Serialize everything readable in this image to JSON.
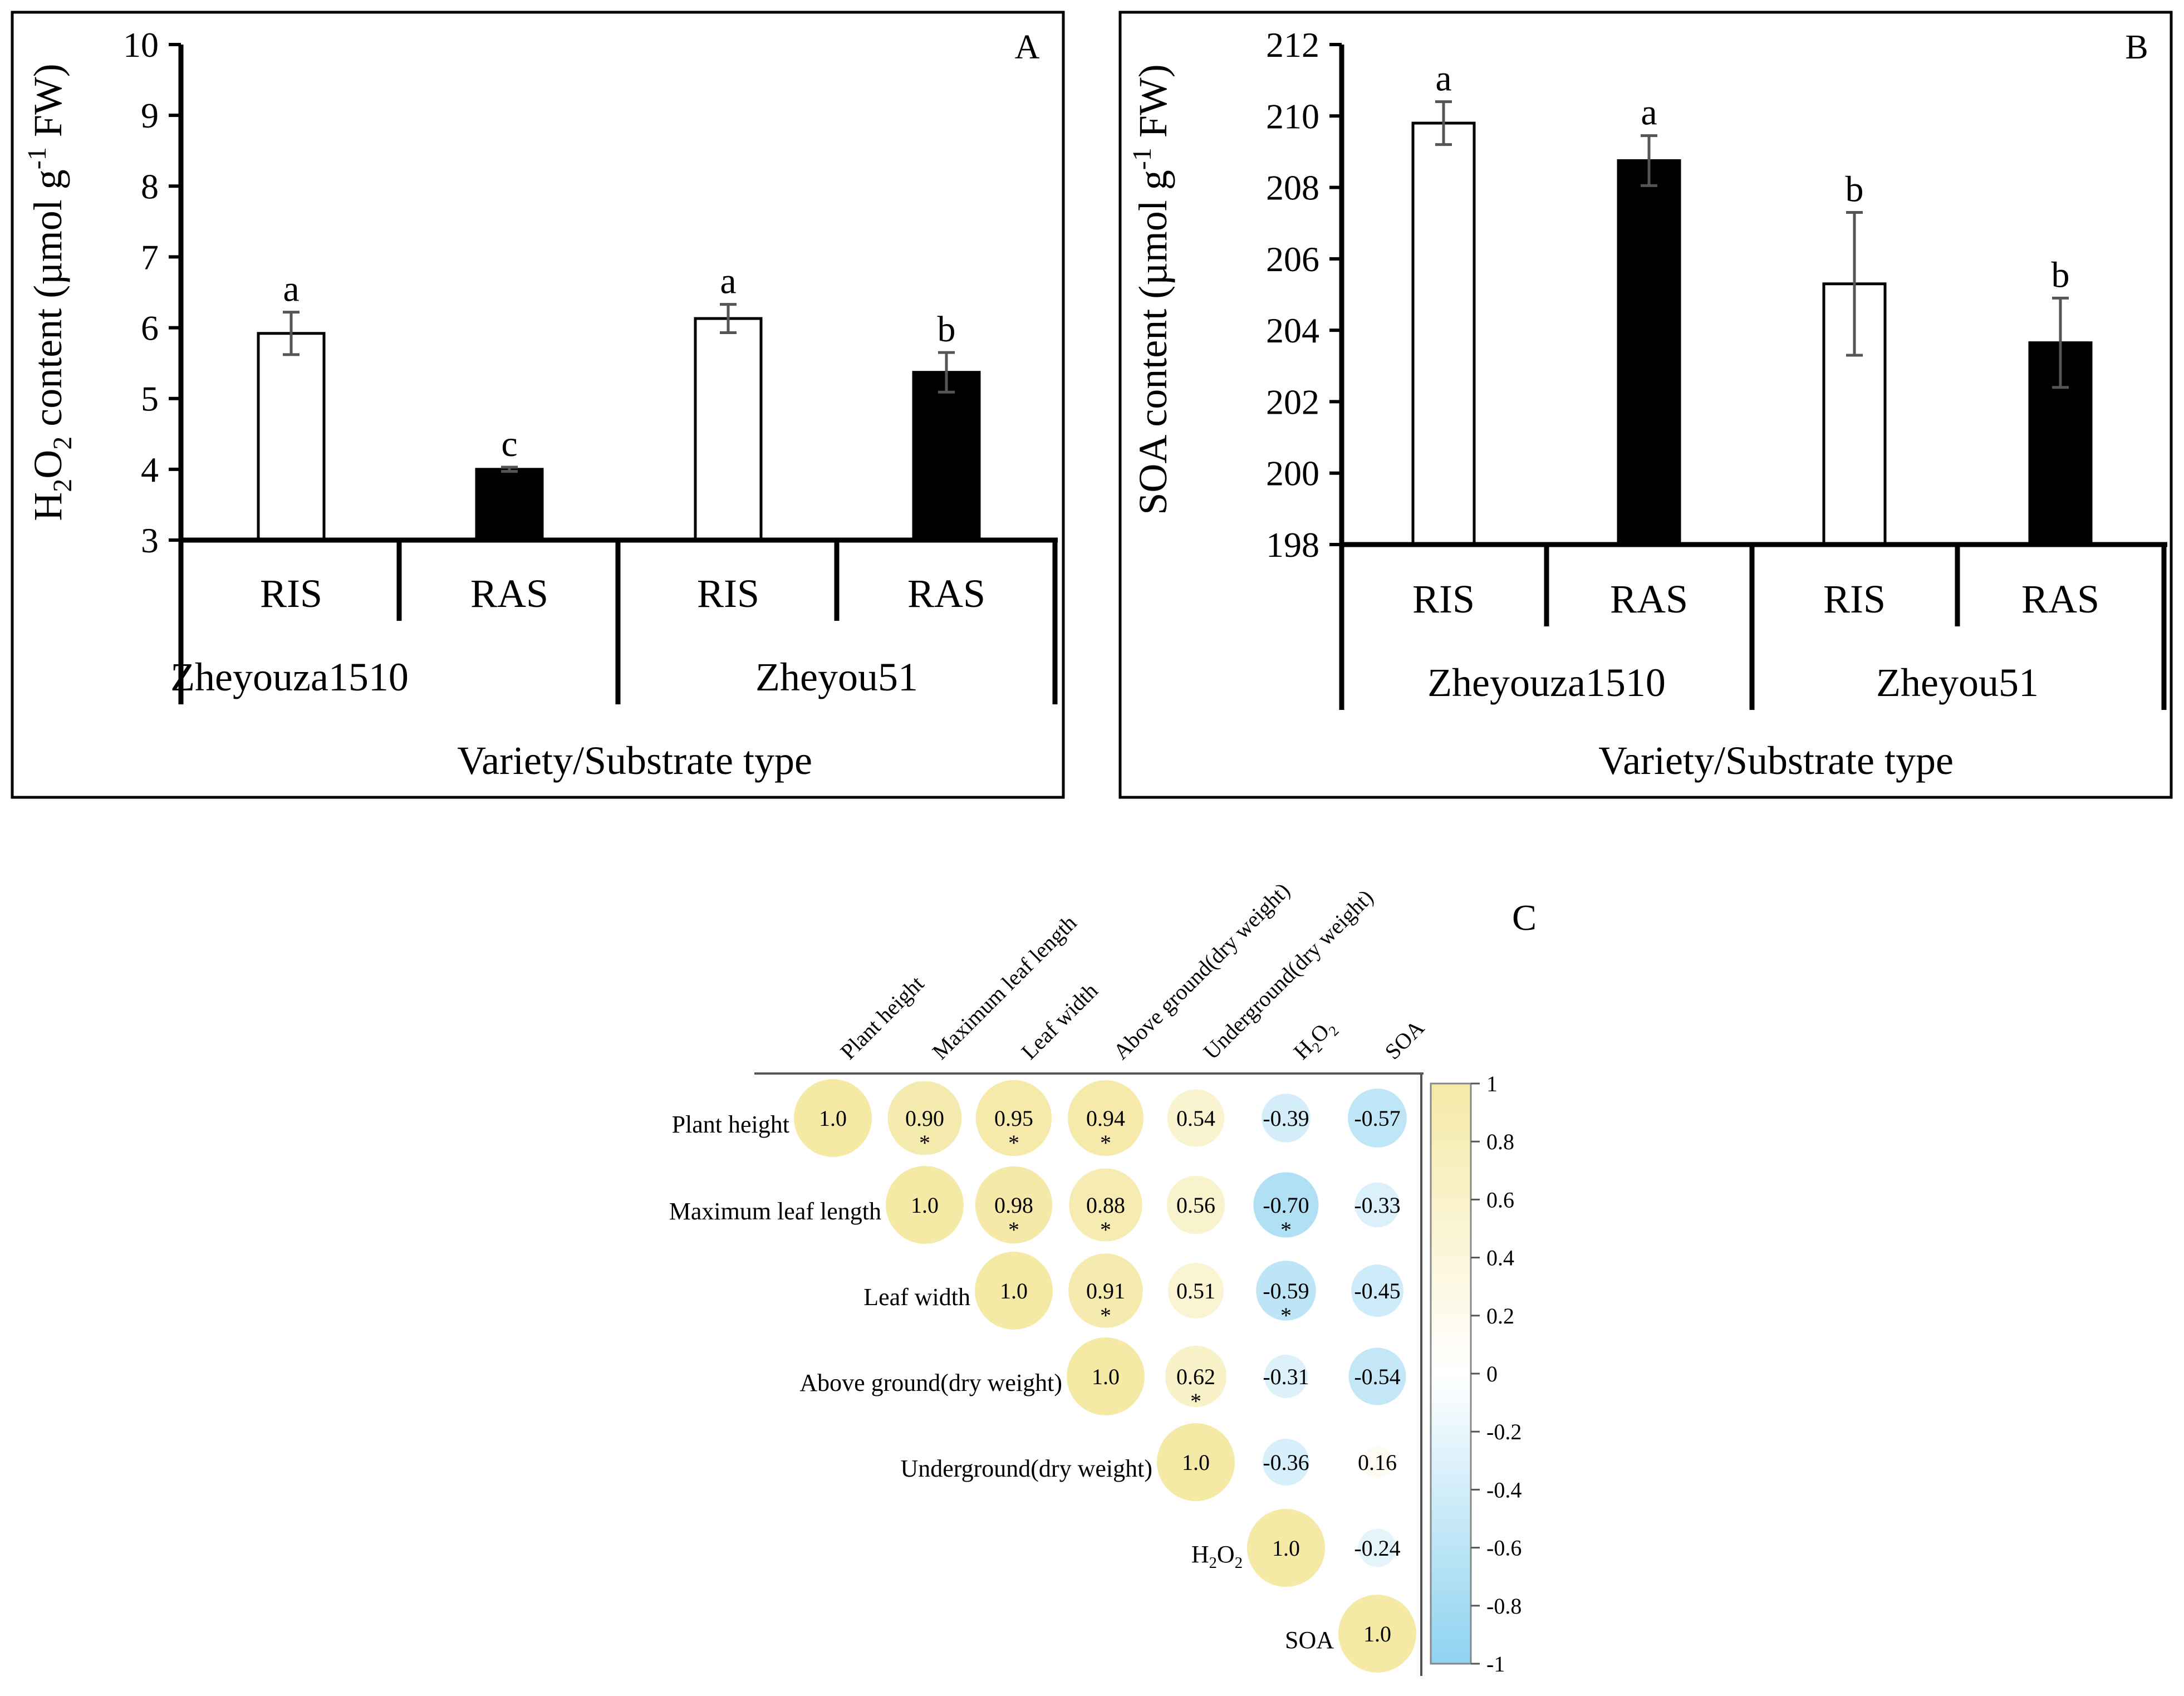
{
  "chart_data": [
    {
      "panel": "A",
      "type": "bar",
      "ylabel_parts": [
        "H",
        "2",
        "O",
        "2",
        " content (",
        "µ",
        "mol g",
        "-1",
        " FW)"
      ],
      "ylim": [
        3,
        10
      ],
      "yticks": [
        3,
        4,
        5,
        6,
        7,
        8,
        9,
        10
      ],
      "categories": [
        "RIS",
        "RAS",
        "RIS",
        "RAS"
      ],
      "groups": [
        "Zheyouza1510",
        "Zheyou51"
      ],
      "xlabel": "Variety/Substrate type",
      "values": [
        5.92,
        4.0,
        6.13,
        5.37
      ],
      "errors": [
        0.3,
        0.03,
        0.2,
        0.28
      ],
      "letters": [
        "a",
        "c",
        "a",
        "b"
      ],
      "fills": [
        "#ffffff",
        "#000000",
        "#ffffff",
        "#000000"
      ]
    },
    {
      "panel": "B",
      "type": "bar",
      "ylabel_parts": [
        "SOA content (",
        "µ",
        "mol g",
        "-1",
        " FW)"
      ],
      "ylim": [
        198,
        212
      ],
      "yticks": [
        198,
        200,
        202,
        204,
        206,
        208,
        210,
        212
      ],
      "categories": [
        "RIS",
        "RAS",
        "RIS",
        "RAS"
      ],
      "groups": [
        "Zheyouza1510",
        "Zheyou51"
      ],
      "xlabel": "Variety/Substrate type",
      "values": [
        209.8,
        208.75,
        205.3,
        203.65
      ],
      "errors": [
        0.6,
        0.7,
        2.0,
        1.25
      ],
      "letters": [
        "a",
        "a",
        "b",
        "b"
      ],
      "fills": [
        "#ffffff",
        "#000000",
        "#ffffff",
        "#000000"
      ]
    },
    {
      "panel": "C",
      "type": "heatmap",
      "variables": [
        "Plant height",
        "Maximum leaf length",
        "Leaf width",
        "Above ground(dry weight)",
        "Underground(dry weight)",
        "H2O2",
        "SOA"
      ],
      "matrix": [
        [
          1.0,
          0.9,
          0.95,
          0.94,
          0.54,
          -0.39,
          -0.57
        ],
        [
          null,
          1.0,
          0.98,
          0.88,
          0.56,
          -0.7,
          -0.33
        ],
        [
          null,
          null,
          1.0,
          0.91,
          0.51,
          -0.59,
          -0.45
        ],
        [
          null,
          null,
          null,
          1.0,
          0.62,
          -0.31,
          -0.54
        ],
        [
          null,
          null,
          null,
          null,
          1.0,
          -0.36,
          0.16
        ],
        [
          null,
          null,
          null,
          null,
          null,
          1.0,
          -0.24
        ],
        [
          null,
          null,
          null,
          null,
          null,
          null,
          1.0
        ]
      ],
      "labels": [
        [
          "1.0",
          "0.90",
          "0.95",
          "0.94",
          "0.54",
          "-0.39",
          "-0.57"
        ],
        [
          null,
          "1.0",
          "0.98",
          "0.88",
          "0.56",
          "-0.70",
          "-0.33"
        ],
        [
          null,
          null,
          "1.0",
          "0.91",
          "0.51",
          "-0.59",
          "-0.45"
        ],
        [
          null,
          null,
          null,
          "1.0",
          "0.62",
          "-0.31",
          "-0.54"
        ],
        [
          null,
          null,
          null,
          null,
          "1.0",
          "-0.36",
          "0.16"
        ],
        [
          null,
          null,
          null,
          null,
          null,
          "1.0",
          "-0.24"
        ],
        [
          null,
          null,
          null,
          null,
          null,
          null,
          "1.0"
        ]
      ],
      "significant": [
        [
          false,
          true,
          true,
          true,
          false,
          false,
          false
        ],
        [
          false,
          false,
          true,
          true,
          false,
          true,
          false
        ],
        [
          false,
          false,
          false,
          true,
          false,
          true,
          false
        ],
        [
          false,
          false,
          false,
          false,
          true,
          false,
          false
        ],
        [
          false,
          false,
          false,
          false,
          false,
          false,
          false
        ],
        [
          false,
          false,
          false,
          false,
          false,
          false,
          false
        ],
        [
          false,
          false,
          false,
          false,
          false,
          false,
          false
        ]
      ],
      "star_symbol": "*",
      "colorbar_ticks": [
        "1",
        "0.8",
        "0.6",
        "0.4",
        "0.2",
        "0",
        "-0.2",
        "-0.4",
        "-0.6",
        "-0.8",
        "-1"
      ],
      "colors": {
        "positive": "#f5e9a6",
        "neutral": "#ffffff",
        "negative": "#8fd3f0"
      }
    }
  ]
}
